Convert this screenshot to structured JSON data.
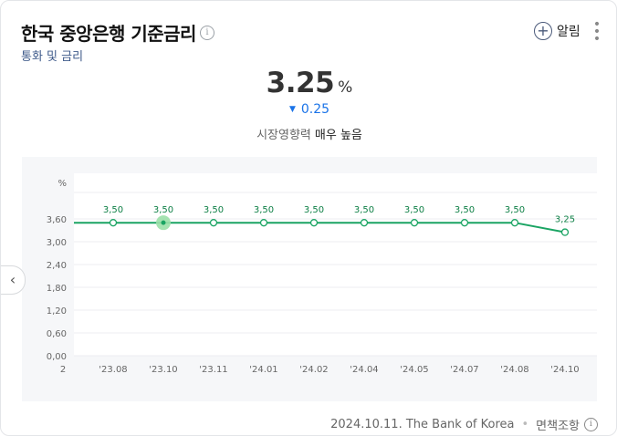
{
  "header": {
    "title": "한국 중앙은행 기준금리",
    "subtitle": "통화 및 금리",
    "info_icon": "i",
    "alarm_label": "알림",
    "more_icon": "⋮"
  },
  "summary": {
    "value": "3.25",
    "unit": "%",
    "change": "0.25",
    "change_direction": "down",
    "impact_label": "시장영향력",
    "impact_level": "매우 높음"
  },
  "colors": {
    "line": "#1aa463",
    "change": "#1a73e8",
    "highlight": "#9be0a8"
  },
  "chart_data": {
    "type": "line",
    "ylabel": "%",
    "y_ticks": [
      "0,00",
      "0,60",
      "1,20",
      "1,80",
      "2,40",
      "3,00",
      "3,60"
    ],
    "y_tick_values": [
      0,
      0.6,
      1.2,
      1.8,
      2.4,
      3.0,
      3.6
    ],
    "x_ticks": [
      "2",
      "'23.08",
      "'23.10",
      "'23.11",
      "'24.01",
      "'24.02",
      "'24.04",
      "'24.05",
      "'24.07",
      "'24.08",
      "'24.10"
    ],
    "points": [
      {
        "x": "'23.08",
        "value": 3.5,
        "label": "3,50"
      },
      {
        "x": "'23.10",
        "value": 3.5,
        "label": "3,50",
        "highlighted": true
      },
      {
        "x": "'23.11",
        "value": 3.5,
        "label": "3,50"
      },
      {
        "x": "'24.01",
        "value": 3.5,
        "label": "3,50"
      },
      {
        "x": "'24.02",
        "value": 3.5,
        "label": "3,50"
      },
      {
        "x": "'24.04",
        "value": 3.5,
        "label": "3,50"
      },
      {
        "x": "'24.05",
        "value": 3.5,
        "label": "3,50"
      },
      {
        "x": "'24.07",
        "value": 3.5,
        "label": "3,50"
      },
      {
        "x": "'24.08",
        "value": 3.5,
        "label": "3,50"
      },
      {
        "x": "'24.10",
        "value": 3.25,
        "label": "3,25"
      }
    ],
    "grid": true
  },
  "footer": {
    "date": "2024.10.11.",
    "source": "The Bank of Korea",
    "separator": "•",
    "disclaimer": "면책조항",
    "info_icon": "i"
  },
  "nav": {
    "prev_icon": "‹"
  }
}
